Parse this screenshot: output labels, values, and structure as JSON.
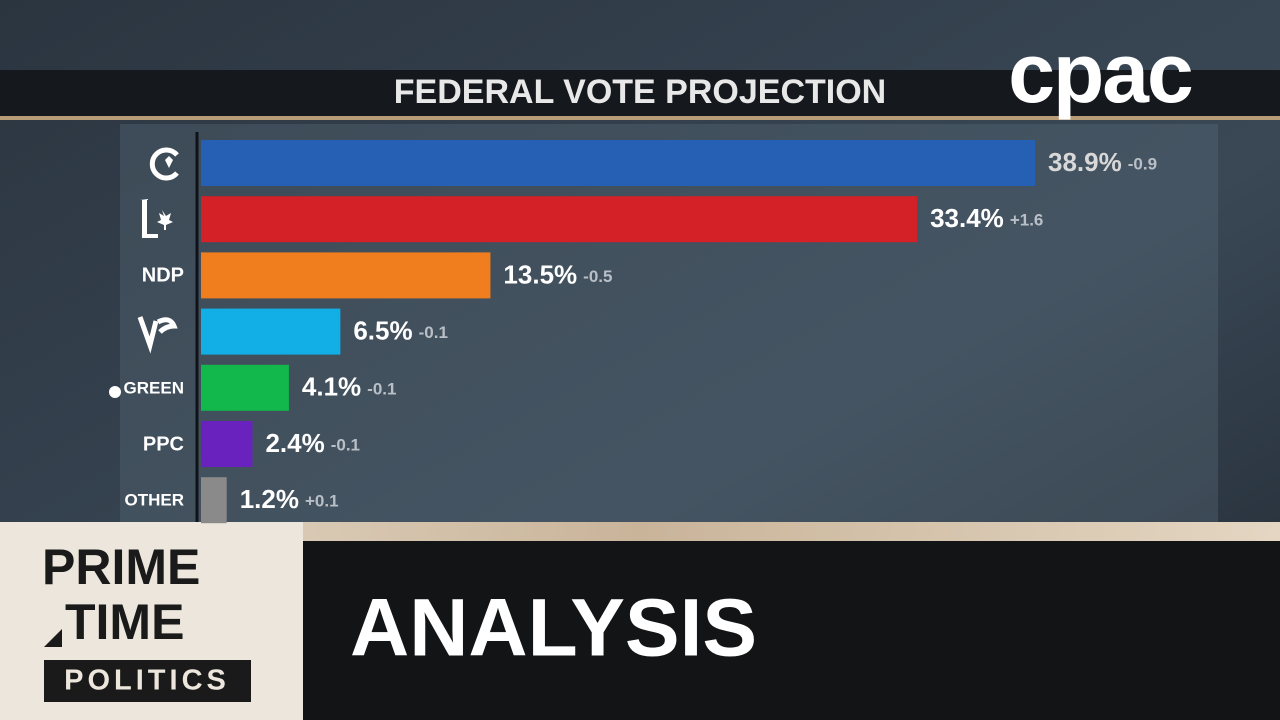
{
  "chart_data": {
    "type": "bar",
    "orientation": "horizontal",
    "title": "FEDERAL VOTE PROJECTION",
    "categories": [
      null,
      null,
      "NDP",
      null,
      "GREEN",
      "PPC",
      "OTHER"
    ],
    "values": [
      38.9,
      33.4,
      13.5,
      6.5,
      4.1,
      2.4,
      1.2
    ],
    "value_labels": [
      "38.9%",
      "33.4%",
      "13.5%",
      "6.5%",
      "4.1%",
      "2.4%",
      "1.2%"
    ],
    "change_values": [
      -0.9,
      1.6,
      -0.5,
      -0.1,
      -0.1,
      -0.1,
      0.1
    ],
    "change_labels": [
      "-0.9",
      "+1.6",
      "-0.5",
      "-0.1",
      "-0.1",
      "-0.1",
      "+0.1"
    ],
    "colors": [
      "#2660b5",
      "#d42027",
      "#f07d1e",
      "#12aee6",
      "#12b84b",
      "#6a22be",
      "#8a8a8a"
    ]
  },
  "network": "cpac",
  "show": [
    "PRIME",
    "TIME",
    "POLITICS"
  ],
  "segment": "ANALYSIS"
}
